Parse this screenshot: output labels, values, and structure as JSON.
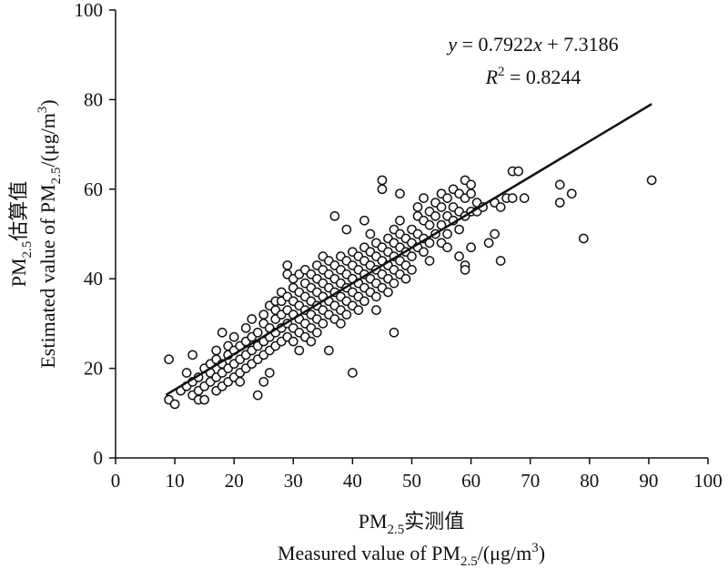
{
  "chart_data": {
    "type": "scatter",
    "title": "",
    "xlabel_line1": "PM2.5实测值",
    "xlabel_line2": "Measured value of PM2.5/(μg/m3)",
    "ylabel_line1": "PM2.5估算值",
    "ylabel_line2": "Estimated value of PM2.5/(μg/m3)",
    "xlabel_parts_line1": [
      {
        "t": "PM"
      },
      {
        "t": "2.5",
        "sub": true
      },
      {
        "t": "实测值"
      }
    ],
    "xlabel_parts_line2": [
      {
        "t": "Measured value of PM"
      },
      {
        "t": "2.5",
        "sub": true
      },
      {
        "t": "/(μg/m"
      },
      {
        "t": "3",
        "sup": true
      },
      {
        "t": ")"
      }
    ],
    "ylabel_parts_line1": [
      {
        "t": "PM"
      },
      {
        "t": "2.5",
        "sub": true
      },
      {
        "t": "估算值"
      }
    ],
    "ylabel_parts_line2": [
      {
        "t": "Estimated value of PM"
      },
      {
        "t": "2.5",
        "sub": true
      },
      {
        "t": "/(μg/m"
      },
      {
        "t": "3",
        "sup": true
      },
      {
        "t": ")"
      }
    ],
    "xlim": [
      0,
      100
    ],
    "ylim": [
      0,
      100
    ],
    "xticks": [
      "0",
      "10",
      "20",
      "30",
      "40",
      "50",
      "60",
      "70",
      "80",
      "90",
      "100"
    ],
    "yticks": [
      "0",
      "20",
      "40",
      "60",
      "80",
      "100"
    ],
    "grid": false,
    "legend": "none",
    "marker": "open-circle",
    "marker_color": "#111111",
    "line_color": "#111111",
    "fit": {
      "slope": 0.7922,
      "intercept": 7.3186,
      "r2": 0.8244,
      "x_range": [
        8.5,
        90.5
      ]
    },
    "annotations": {
      "equation": "y = 0.7922x + 7.3186",
      "r2_text": "R2 = 0.8244",
      "equation_parts": [
        {
          "t": "y",
          "italic": true
        },
        {
          "t": " = 0.7922"
        },
        {
          "t": "x",
          "italic": true
        },
        {
          "t": " + 7.3186"
        }
      ],
      "r2_parts": [
        {
          "t": "R",
          "italic": true
        },
        {
          "t": "2",
          "sup": true
        },
        {
          "t": " = 0.8244"
        }
      ]
    },
    "points": [
      [
        9,
        13
      ],
      [
        10,
        12
      ],
      [
        9,
        22
      ],
      [
        11,
        15
      ],
      [
        12,
        16
      ],
      [
        12,
        19
      ],
      [
        13,
        14
      ],
      [
        13,
        17
      ],
      [
        13,
        23
      ],
      [
        14,
        15
      ],
      [
        14,
        18
      ],
      [
        14,
        13
      ],
      [
        15,
        16
      ],
      [
        15,
        20
      ],
      [
        15,
        13
      ],
      [
        16,
        17
      ],
      [
        16,
        19
      ],
      [
        16,
        21
      ],
      [
        17,
        15
      ],
      [
        17,
        18
      ],
      [
        17,
        22
      ],
      [
        17,
        24
      ],
      [
        18,
        16
      ],
      [
        18,
        19
      ],
      [
        18,
        21
      ],
      [
        18,
        28
      ],
      [
        19,
        17
      ],
      [
        19,
        20
      ],
      [
        19,
        23
      ],
      [
        19,
        25
      ],
      [
        20,
        18
      ],
      [
        20,
        21
      ],
      [
        20,
        24
      ],
      [
        20,
        27
      ],
      [
        21,
        19
      ],
      [
        21,
        22
      ],
      [
        21,
        25
      ],
      [
        21,
        17
      ],
      [
        22,
        20
      ],
      [
        22,
        23
      ],
      [
        22,
        26
      ],
      [
        22,
        29
      ],
      [
        23,
        21
      ],
      [
        23,
        24
      ],
      [
        23,
        27
      ],
      [
        23,
        31
      ],
      [
        24,
        22
      ],
      [
        24,
        25
      ],
      [
        24,
        28
      ],
      [
        24,
        14
      ],
      [
        25,
        23
      ],
      [
        25,
        26
      ],
      [
        25,
        30
      ],
      [
        25,
        32
      ],
      [
        25,
        17
      ],
      [
        26,
        24
      ],
      [
        26,
        27
      ],
      [
        26,
        29
      ],
      [
        26,
        19
      ],
      [
        26,
        34
      ],
      [
        27,
        25
      ],
      [
        27,
        28
      ],
      [
        27,
        31
      ],
      [
        27,
        33
      ],
      [
        27,
        35
      ],
      [
        28,
        26
      ],
      [
        28,
        29
      ],
      [
        28,
        32
      ],
      [
        28,
        35
      ],
      [
        28,
        37
      ],
      [
        29,
        27
      ],
      [
        29,
        30
      ],
      [
        29,
        33
      ],
      [
        29,
        36
      ],
      [
        29,
        43
      ],
      [
        29,
        41
      ],
      [
        30,
        26
      ],
      [
        30,
        29
      ],
      [
        30,
        32
      ],
      [
        30,
        35
      ],
      [
        30,
        38
      ],
      [
        30,
        40
      ],
      [
        31,
        24
      ],
      [
        31,
        28
      ],
      [
        31,
        31
      ],
      [
        31,
        34
      ],
      [
        31,
        37
      ],
      [
        31,
        41
      ],
      [
        32,
        27
      ],
      [
        32,
        30
      ],
      [
        32,
        33
      ],
      [
        32,
        36
      ],
      [
        32,
        39
      ],
      [
        32,
        42
      ],
      [
        33,
        29
      ],
      [
        33,
        32
      ],
      [
        33,
        35
      ],
      [
        33,
        38
      ],
      [
        33,
        41
      ],
      [
        33,
        26
      ],
      [
        34,
        31
      ],
      [
        34,
        34
      ],
      [
        34,
        37
      ],
      [
        34,
        40
      ],
      [
        34,
        43
      ],
      [
        34,
        28
      ],
      [
        35,
        30
      ],
      [
        35,
        33
      ],
      [
        35,
        36
      ],
      [
        35,
        39
      ],
      [
        35,
        42
      ],
      [
        35,
        45
      ],
      [
        36,
        32
      ],
      [
        36,
        35
      ],
      [
        36,
        38
      ],
      [
        36,
        41
      ],
      [
        36,
        44
      ],
      [
        36,
        24
      ],
      [
        37,
        31
      ],
      [
        37,
        34
      ],
      [
        37,
        37
      ],
      [
        37,
        40
      ],
      [
        37,
        43
      ],
      [
        37,
        54
      ],
      [
        38,
        33
      ],
      [
        38,
        36
      ],
      [
        38,
        39
      ],
      [
        38,
        42
      ],
      [
        38,
        45
      ],
      [
        38,
        30
      ],
      [
        39,
        32
      ],
      [
        39,
        35
      ],
      [
        39,
        38
      ],
      [
        39,
        41
      ],
      [
        39,
        44
      ],
      [
        39,
        51
      ],
      [
        40,
        34
      ],
      [
        40,
        37
      ],
      [
        40,
        40
      ],
      [
        40,
        43
      ],
      [
        40,
        46
      ],
      [
        40,
        19
      ],
      [
        41,
        36
      ],
      [
        41,
        39
      ],
      [
        41,
        42
      ],
      [
        41,
        45
      ],
      [
        41,
        33
      ],
      [
        42,
        35
      ],
      [
        42,
        38
      ],
      [
        42,
        41
      ],
      [
        42,
        44
      ],
      [
        42,
        47
      ],
      [
        42,
        53
      ],
      [
        43,
        37
      ],
      [
        43,
        40
      ],
      [
        43,
        43
      ],
      [
        43,
        46
      ],
      [
        43,
        50
      ],
      [
        44,
        36
      ],
      [
        44,
        39
      ],
      [
        44,
        42
      ],
      [
        44,
        45
      ],
      [
        44,
        48
      ],
      [
        44,
        33
      ],
      [
        45,
        38
      ],
      [
        45,
        41
      ],
      [
        45,
        44
      ],
      [
        45,
        47
      ],
      [
        45,
        62
      ],
      [
        45,
        60
      ],
      [
        46,
        40
      ],
      [
        46,
        43
      ],
      [
        46,
        46
      ],
      [
        46,
        49
      ],
      [
        46,
        37
      ],
      [
        47,
        39
      ],
      [
        47,
        42
      ],
      [
        47,
        45
      ],
      [
        47,
        48
      ],
      [
        47,
        51
      ],
      [
        47,
        28
      ],
      [
        48,
        41
      ],
      [
        48,
        44
      ],
      [
        48,
        47
      ],
      [
        48,
        50
      ],
      [
        48,
        53
      ],
      [
        48,
        59
      ],
      [
        49,
        43
      ],
      [
        49,
        46
      ],
      [
        49,
        49
      ],
      [
        49,
        40
      ],
      [
        50,
        45
      ],
      [
        50,
        48
      ],
      [
        50,
        51
      ],
      [
        50,
        42
      ],
      [
        51,
        47
      ],
      [
        51,
        50
      ],
      [
        51,
        54
      ],
      [
        51,
        56
      ],
      [
        52,
        46
      ],
      [
        52,
        49
      ],
      [
        52,
        53
      ],
      [
        52,
        58
      ],
      [
        53,
        44
      ],
      [
        53,
        48
      ],
      [
        53,
        52
      ],
      [
        53,
        55
      ],
      [
        54,
        50
      ],
      [
        54,
        54
      ],
      [
        54,
        57
      ],
      [
        55,
        48
      ],
      [
        55,
        52
      ],
      [
        55,
        56
      ],
      [
        55,
        59
      ],
      [
        56,
        50
      ],
      [
        56,
        54
      ],
      [
        56,
        58
      ],
      [
        56,
        47
      ],
      [
        57,
        53
      ],
      [
        57,
        56
      ],
      [
        57,
        60
      ],
      [
        58,
        51
      ],
      [
        58,
        55
      ],
      [
        58,
        59
      ],
      [
        58,
        45
      ],
      [
        59,
        54
      ],
      [
        59,
        58
      ],
      [
        59,
        62
      ],
      [
        59,
        43
      ],
      [
        59,
        42
      ],
      [
        60,
        55
      ],
      [
        60,
        59
      ],
      [
        60,
        61
      ],
      [
        60,
        47
      ],
      [
        61,
        57
      ],
      [
        61,
        55
      ],
      [
        62,
        56
      ],
      [
        63,
        48
      ],
      [
        64,
        50
      ],
      [
        64,
        57
      ],
      [
        65,
        56
      ],
      [
        65,
        44
      ],
      [
        66,
        58
      ],
      [
        67,
        64
      ],
      [
        67,
        58
      ],
      [
        68,
        64
      ],
      [
        69,
        58
      ],
      [
        75,
        61
      ],
      [
        75,
        57
      ],
      [
        77,
        59
      ],
      [
        79,
        49
      ],
      [
        90.5,
        62
      ]
    ]
  }
}
